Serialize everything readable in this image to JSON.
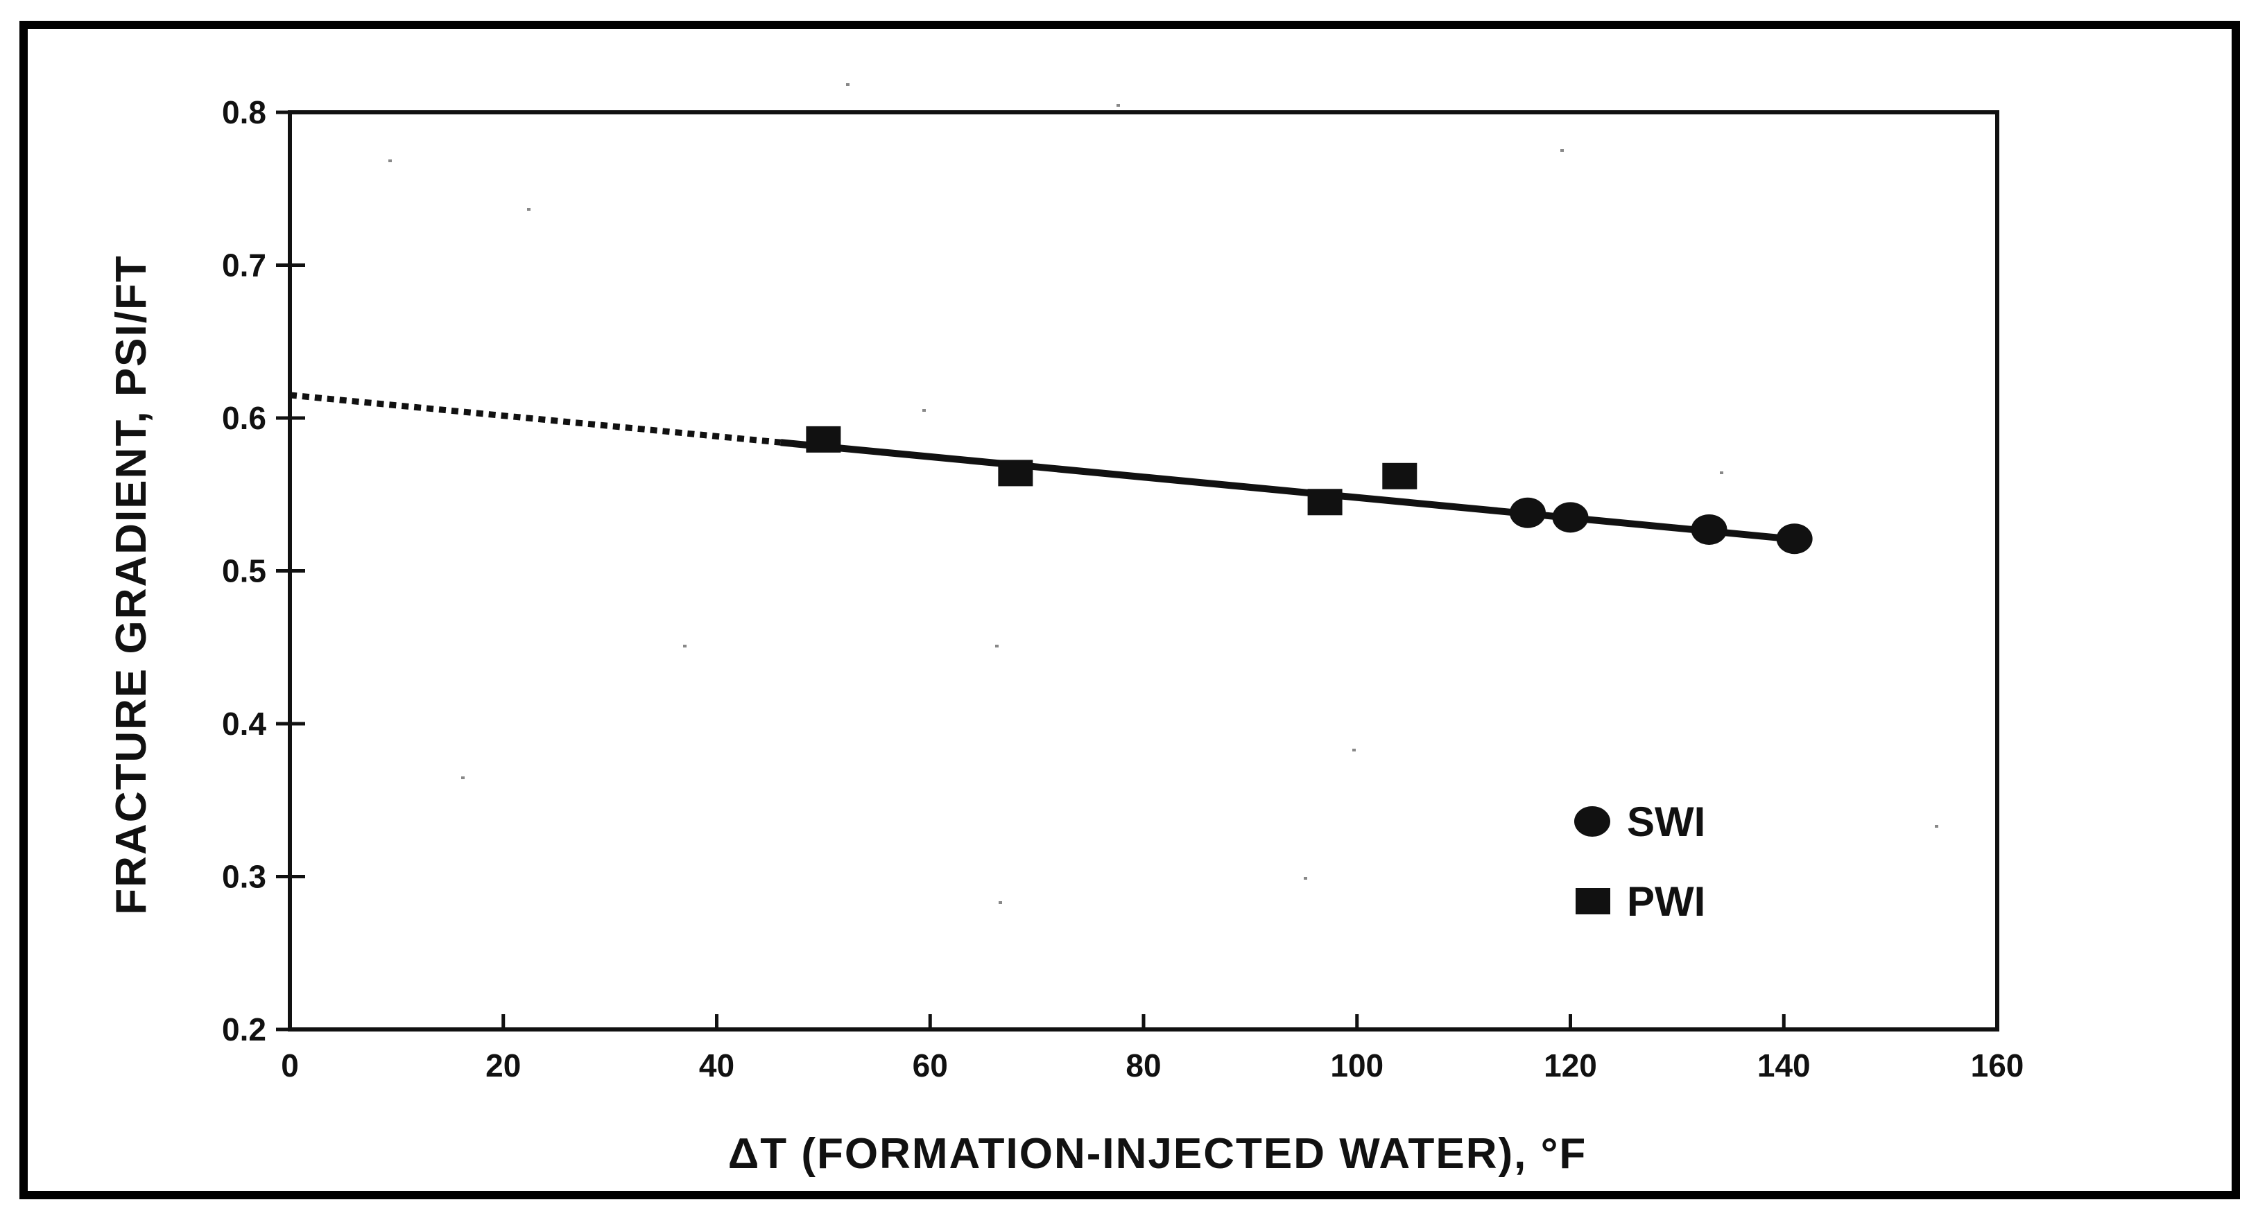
{
  "chart_data": {
    "type": "scatter",
    "title": "",
    "xlabel": "ΔT  (FORMATION-INJECTED  WATER), °F",
    "ylabel": "FRACTURE  GRADIENT,  PSI/FT",
    "xlim": [
      0,
      160
    ],
    "ylim": [
      0.2,
      0.8
    ],
    "xticks": [
      0,
      20,
      40,
      60,
      80,
      100,
      120,
      140,
      160
    ],
    "yticks": [
      0.2,
      0.3,
      0.4,
      0.5,
      0.6,
      0.7,
      0.8
    ],
    "xtick_labels": [
      "0",
      "20",
      "40",
      "60",
      "80",
      "100",
      "120",
      "140",
      "160"
    ],
    "ytick_labels": [
      "0.2",
      "0.3",
      "0.4",
      "0.5",
      "0.6",
      "0.7",
      "0.8"
    ],
    "grid": false,
    "legend_position": "lower-right",
    "series": [
      {
        "name": "SWI",
        "marker": "circle",
        "x": [
          116,
          120,
          133,
          141
        ],
        "y": [
          0.538,
          0.535,
          0.527,
          0.521
        ]
      },
      {
        "name": "PWI",
        "marker": "square",
        "x": [
          50,
          68,
          97,
          104
        ],
        "y": [
          0.586,
          0.564,
          0.545,
          0.562
        ]
      }
    ],
    "fit_line": {
      "dashed": {
        "x": [
          0,
          46
        ],
        "y": [
          0.615,
          0.584
        ]
      },
      "solid": {
        "x": [
          46,
          142
        ],
        "y": [
          0.584,
          0.52
        ]
      }
    }
  }
}
